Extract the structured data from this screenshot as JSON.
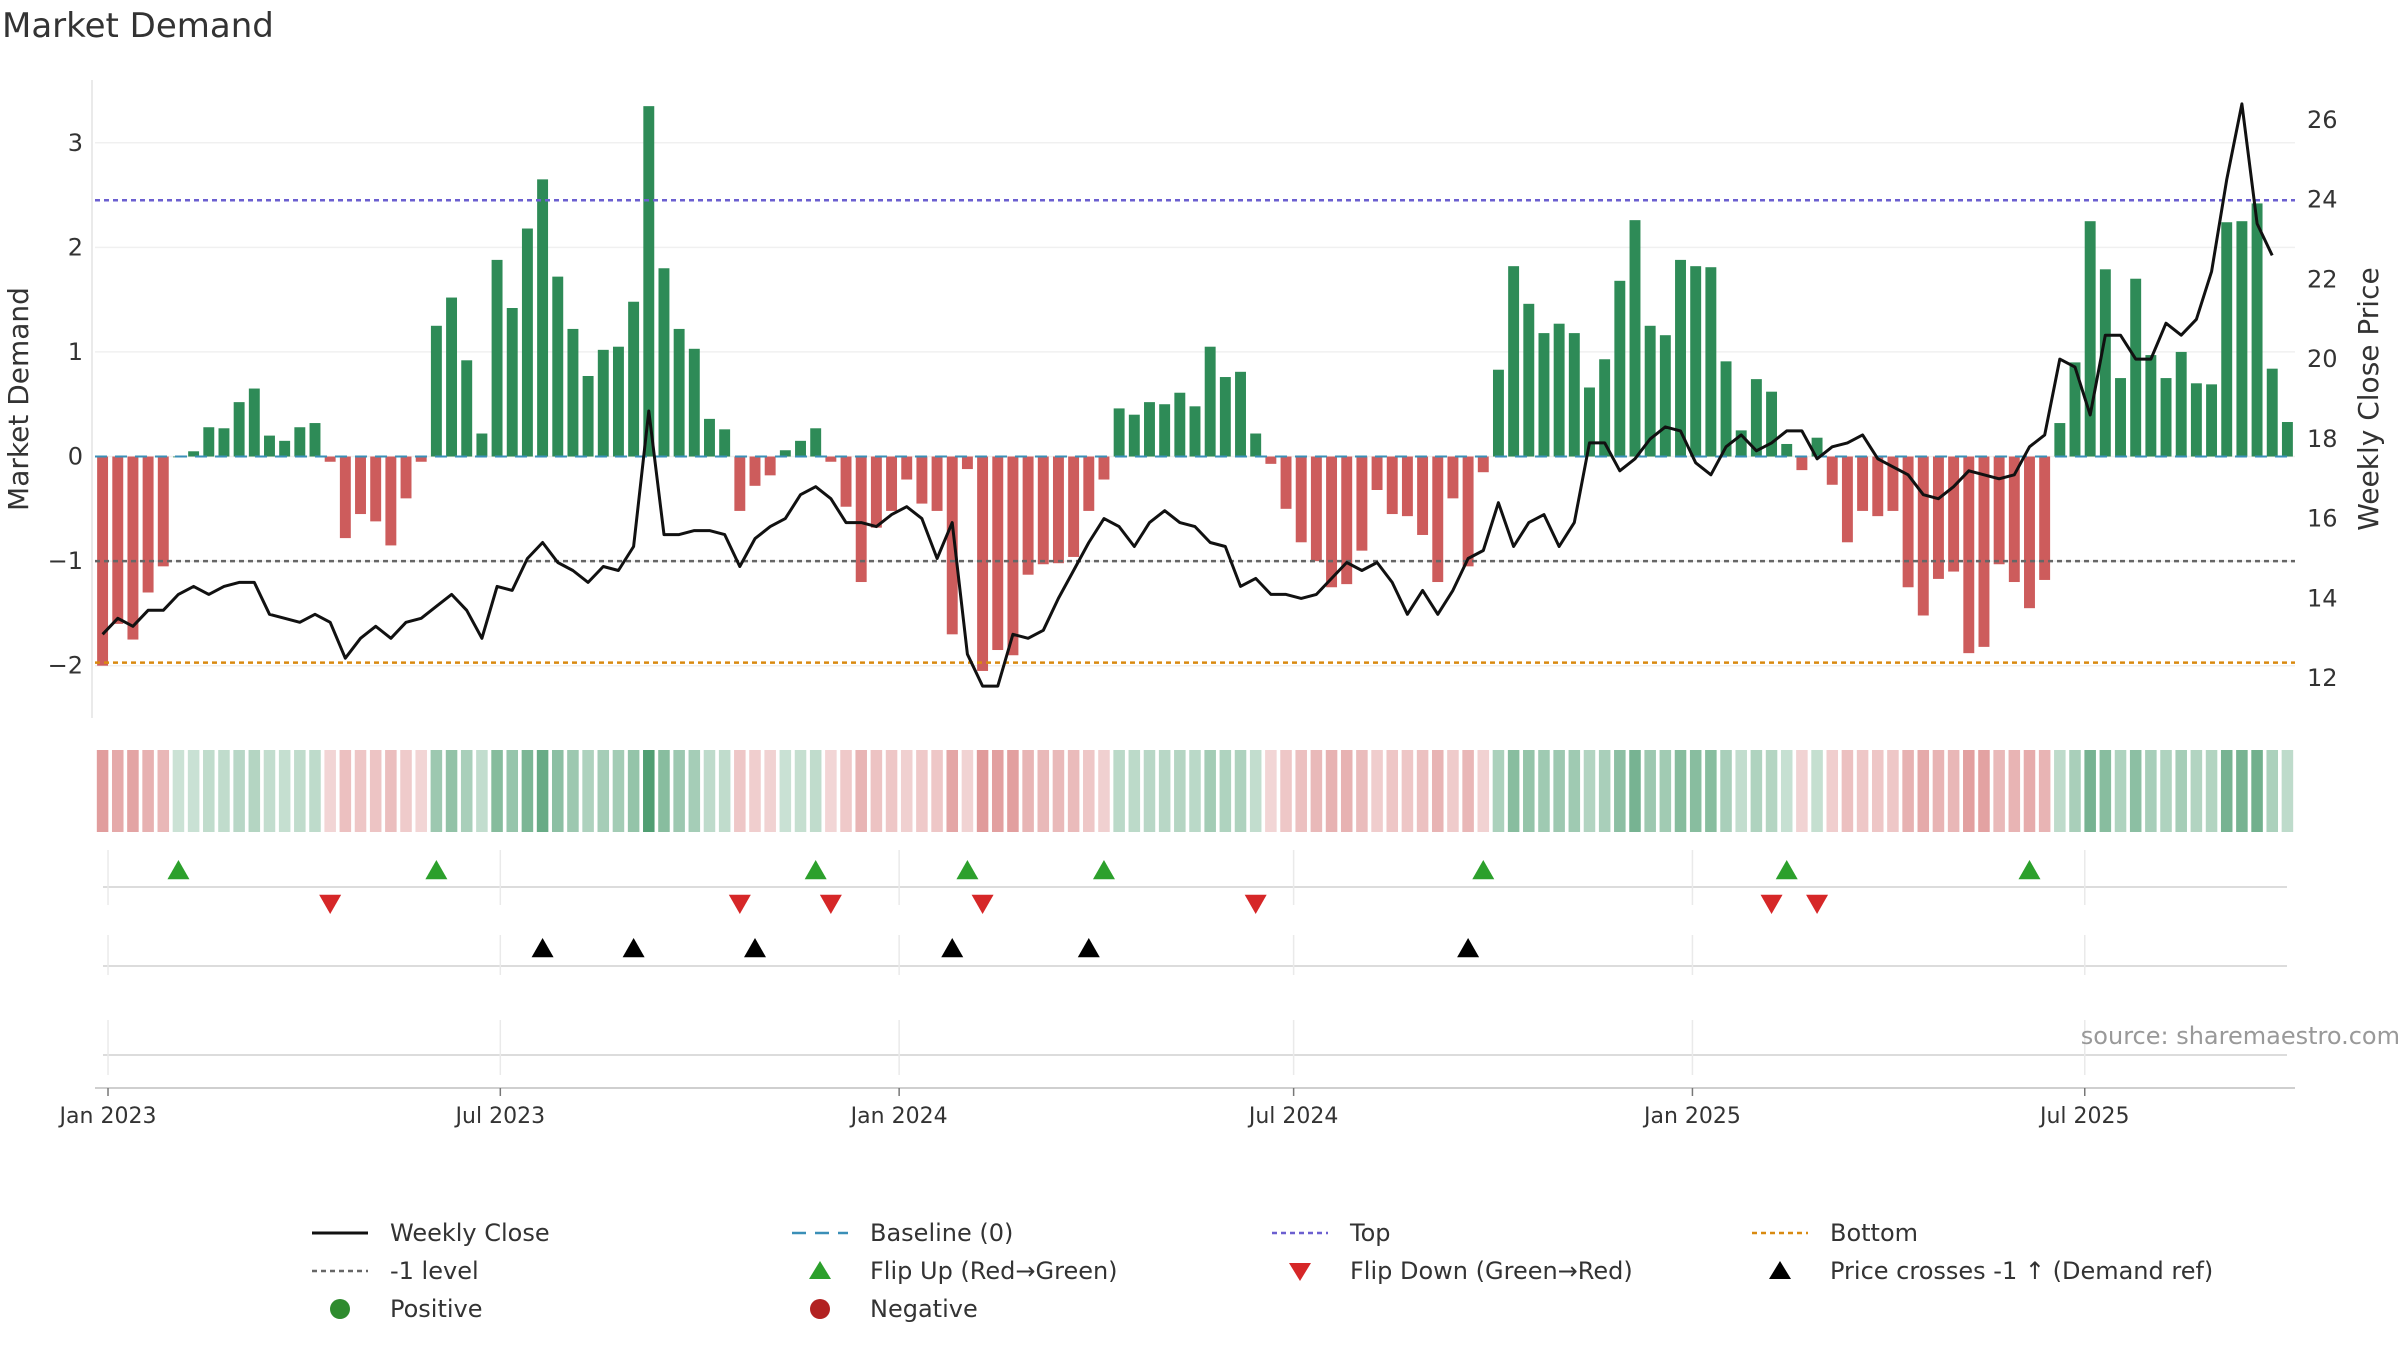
{
  "chart_data": {
    "type": "bar",
    "title": "Market Demand",
    "source": "source: sharemaestro.com",
    "ylabel": "Market Demand",
    "y2label": "Weekly Close Price",
    "ylim": [
      -2.5,
      3.6
    ],
    "y2lim": [
      11,
      27
    ],
    "yticks": [
      -2,
      -1,
      0,
      1,
      2,
      3
    ],
    "y2ticks": [
      12,
      14,
      16,
      18,
      20,
      22,
      24,
      26
    ],
    "x_start": "2022-12-26",
    "x_end": "2025-10-06",
    "xticks": [
      {
        "date": "2023-01-01",
        "label": "Jan 2023"
      },
      {
        "date": "2023-07-01",
        "label": "Jul 2023"
      },
      {
        "date": "2024-01-01",
        "label": "Jan 2024"
      },
      {
        "date": "2024-07-01",
        "label": "Jul 2024"
      },
      {
        "date": "2025-01-01",
        "label": "Jan 2025"
      },
      {
        "date": "2025-07-01",
        "label": "Jul 2025"
      }
    ],
    "reference_lines": [
      {
        "name": "Top",
        "value": 2.45,
        "color": "#6b5fd0"
      },
      {
        "name": "-1 level",
        "value": -1,
        "color": "#666666"
      },
      {
        "name": "Bottom",
        "value": -1.97,
        "color": "#d98a10"
      }
    ],
    "series": [
      {
        "name": "Market Demand",
        "axis": "left",
        "values": [
          -2.0,
          -1.6,
          -1.75,
          -1.3,
          -1.05,
          0.0,
          0.05,
          0.28,
          0.27,
          0.52,
          0.65,
          0.2,
          0.15,
          0.28,
          0.32,
          -0.05,
          -0.78,
          -0.55,
          -0.62,
          -0.85,
          -0.4,
          -0.05,
          1.25,
          1.52,
          0.92,
          0.22,
          1.88,
          1.42,
          2.18,
          2.65,
          1.72,
          1.22,
          0.77,
          1.02,
          1.05,
          1.48,
          3.35,
          1.8,
          1.22,
          1.03,
          0.36,
          0.26,
          -0.52,
          -0.28,
          -0.18,
          0.06,
          0.15,
          0.27,
          -0.05,
          -0.48,
          -1.2,
          -0.68,
          -0.52,
          -0.22,
          -0.45,
          -0.52,
          -1.7,
          -0.12,
          -2.05,
          -1.85,
          -1.9,
          -1.13,
          -1.03,
          -1.02,
          -0.96,
          -0.52,
          -0.22,
          0.46,
          0.4,
          0.52,
          0.5,
          0.61,
          0.48,
          1.05,
          0.76,
          0.81,
          0.22,
          -0.07,
          -0.5,
          -0.82,
          -1.0,
          -1.25,
          -1.22,
          -0.9,
          -0.32,
          -0.55,
          -0.57,
          -0.75,
          -1.2,
          -0.4,
          -1.05,
          -0.15,
          0.83,
          1.82,
          1.46,
          1.18,
          1.27,
          1.18,
          0.66,
          0.93,
          1.68,
          2.26,
          1.25,
          1.16,
          1.88,
          1.82,
          1.81,
          0.91,
          0.25,
          0.74,
          0.62,
          0.12,
          -0.13,
          0.18,
          -0.27,
          -0.82,
          -0.52,
          -0.57,
          -0.52,
          -1.25,
          -1.52,
          -1.17,
          -1.1,
          -1.88,
          -1.82,
          -1.03,
          -1.2,
          -1.45,
          -1.18,
          0.32,
          0.9,
          2.25,
          1.79,
          0.75,
          1.7,
          0.97,
          0.75,
          1.0,
          0.7,
          0.69,
          2.24,
          2.25,
          2.42,
          0.84,
          0.33
        ]
      },
      {
        "name": "Weekly Close",
        "axis": "right",
        "values": [
          13.1,
          13.5,
          13.3,
          13.7,
          13.7,
          14.1,
          14.3,
          14.1,
          14.3,
          14.4,
          14.4,
          13.6,
          13.5,
          13.4,
          13.6,
          13.4,
          12.5,
          13.0,
          13.3,
          13.0,
          13.4,
          13.5,
          13.8,
          14.1,
          13.7,
          13.0,
          14.3,
          14.2,
          15.0,
          15.4,
          14.9,
          14.7,
          14.4,
          14.8,
          14.7,
          15.3,
          18.7,
          15.6,
          15.6,
          15.7,
          15.7,
          15.6,
          14.8,
          15.5,
          15.8,
          16.0,
          16.6,
          16.8,
          16.5,
          15.9,
          15.9,
          15.8,
          16.1,
          16.3,
          16.0,
          15.0,
          15.9,
          12.6,
          11.8,
          11.8,
          13.1,
          13.0,
          13.2,
          14.0,
          14.7,
          15.4,
          16.0,
          15.8,
          15.3,
          15.9,
          16.2,
          15.9,
          15.8,
          15.4,
          15.3,
          14.3,
          14.5,
          14.1,
          14.1,
          14.0,
          14.1,
          14.5,
          14.9,
          14.7,
          14.9,
          14.4,
          13.6,
          14.2,
          13.6,
          14.2,
          15.0,
          15.2,
          16.4,
          15.3,
          15.9,
          16.1,
          15.3,
          15.9,
          17.9,
          17.9,
          17.2,
          17.5,
          18.0,
          18.3,
          18.2,
          17.4,
          17.1,
          17.8,
          18.1,
          17.7,
          17.9,
          18.2,
          18.2,
          17.5,
          17.8,
          17.9,
          18.1,
          17.5,
          17.3,
          17.1,
          16.6,
          16.5,
          16.8,
          17.2,
          17.1,
          17.0,
          17.1,
          17.8,
          18.1,
          20.0,
          19.8,
          18.6,
          20.6,
          20.6,
          20.0,
          20.0,
          20.9,
          20.6,
          21.0,
          22.2,
          24.5,
          26.4,
          23.4,
          22.6
        ]
      }
    ],
    "flip_up_weeks": [
      5,
      22,
      47,
      57,
      66,
      91,
      111,
      127
    ],
    "flip_down_weeks": [
      15,
      42,
      48,
      58,
      76,
      110,
      113
    ],
    "price_cross_weeks": [
      29,
      35,
      43,
      56,
      65,
      90
    ],
    "legend": [
      {
        "label": "Weekly Close",
        "symbol": "solid-line",
        "color": "#111111"
      },
      {
        "label": "Baseline (0)",
        "symbol": "dashed-line",
        "color": "#3a8fb7"
      },
      {
        "label": "Top",
        "symbol": "dotted-line",
        "color": "#6b5fd0"
      },
      {
        "label": "Bottom",
        "symbol": "dotted-line",
        "color": "#d98a10"
      },
      {
        "label": "-1 level",
        "symbol": "dotted-line",
        "color": "#666666"
      },
      {
        "label": "Flip Up (Red→Green)",
        "symbol": "triangle-up",
        "color": "#2ca02c"
      },
      {
        "label": "Flip Down (Green→Red)",
        "symbol": "triangle-down",
        "color": "#d62728"
      },
      {
        "label": "Price crosses -1 ↑ (Demand ref)",
        "symbol": "triangle-up",
        "color": "#000000"
      },
      {
        "label": "Positive",
        "symbol": "circle",
        "color": "#2e8b2e"
      },
      {
        "label": "Negative",
        "symbol": "circle",
        "color": "#b22222"
      }
    ],
    "colors": {
      "positive": "#2e8b57",
      "negative": "#cd5c5c",
      "price": "#111111",
      "baseline": "#3a8fb7"
    }
  }
}
